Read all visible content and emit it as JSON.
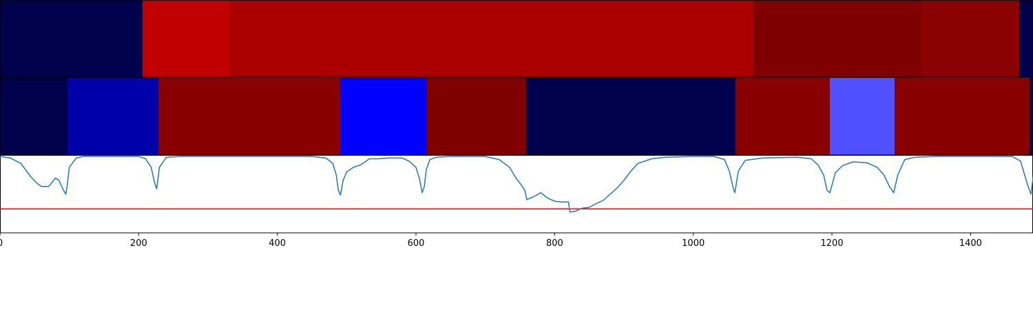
{
  "chart_data": [
    {
      "type": "heatmap",
      "segments": [
        {
          "start": 0,
          "end": 206,
          "color": "#00004c"
        },
        {
          "start": 206,
          "end": 332,
          "color": "#c00000"
        },
        {
          "start": 332,
          "end": 1087,
          "color": "#aa0000"
        },
        {
          "start": 1087,
          "end": 1329,
          "color": "#7f0000"
        },
        {
          "start": 1329,
          "end": 1470,
          "color": "#8b0000"
        },
        {
          "start": 1470,
          "end": 1500,
          "color": "#00004c"
        }
      ]
    },
    {
      "type": "heatmap",
      "segments": [
        {
          "start": 0,
          "end": 97,
          "color": "#00004c"
        },
        {
          "start": 97,
          "end": 228,
          "color": "#0000aa"
        },
        {
          "start": 228,
          "end": 491,
          "color": "#880000"
        },
        {
          "start": 491,
          "end": 615,
          "color": "#0000ff"
        },
        {
          "start": 615,
          "end": 759,
          "color": "#800000"
        },
        {
          "start": 759,
          "end": 1061,
          "color": "#00004c"
        },
        {
          "start": 1061,
          "end": 1197,
          "color": "#880000"
        },
        {
          "start": 1197,
          "end": 1290,
          "color": "#5050ff"
        },
        {
          "start": 1290,
          "end": 1485,
          "color": "#880000"
        },
        {
          "start": 1485,
          "end": 1500,
          "color": "#00004c"
        }
      ]
    },
    {
      "type": "line",
      "xlim": [
        0,
        1490
      ],
      "ylim": [
        0,
        1
      ],
      "xticks": [
        0,
        200,
        400,
        600,
        800,
        1000,
        1200,
        1400
      ],
      "line_color": "#1f77b4",
      "threshold": {
        "y": 0.31,
        "color": "#ff0000"
      },
      "series": [
        {
          "x": [
            0,
            15,
            30,
            45,
            55,
            60,
            70,
            80,
            85,
            90,
            95,
            97,
            100,
            110,
            120,
            140,
            180,
            200,
            210,
            218,
            223,
            226,
            230,
            240,
            260,
            300,
            400,
            450,
            470,
            480,
            485,
            488,
            491,
            495,
            500,
            510,
            520,
            533,
            545,
            560,
            580,
            590,
            600,
            605,
            609,
            612,
            615,
            620,
            630,
            650,
            680,
            700,
            720,
            735,
            745,
            752,
            757,
            760,
            770,
            780,
            790,
            800,
            810,
            820,
            822,
            830,
            840,
            850,
            860,
            870,
            880,
            890,
            900,
            910,
            920,
            940,
            960,
            1000,
            1030,
            1045,
            1052,
            1057,
            1060,
            1065,
            1075,
            1100,
            1150,
            1170,
            1180,
            1188,
            1193,
            1197,
            1205,
            1215,
            1230,
            1250,
            1265,
            1275,
            1283,
            1289,
            1295,
            1305,
            1320,
            1350,
            1400,
            1440,
            1460,
            1472,
            1478,
            1483,
            1487,
            1492,
            1500
          ],
          "y": [
            0.99,
            0.97,
            0.9,
            0.72,
            0.63,
            0.6,
            0.6,
            0.71,
            0.68,
            0.58,
            0.5,
            0.62,
            0.85,
            0.97,
            0.99,
            0.99,
            0.99,
            0.99,
            0.96,
            0.85,
            0.65,
            0.57,
            0.85,
            0.98,
            0.99,
            0.99,
            0.99,
            0.99,
            0.97,
            0.9,
            0.75,
            0.55,
            0.49,
            0.68,
            0.79,
            0.85,
            0.88,
            0.96,
            0.96,
            0.97,
            0.97,
            0.93,
            0.85,
            0.7,
            0.52,
            0.6,
            0.82,
            0.95,
            0.98,
            0.99,
            0.99,
            0.99,
            0.95,
            0.85,
            0.7,
            0.62,
            0.55,
            0.43,
            0.47,
            0.52,
            0.45,
            0.41,
            0.4,
            0.4,
            0.27,
            0.28,
            0.32,
            0.33,
            0.38,
            0.42,
            0.5,
            0.58,
            0.68,
            0.8,
            0.9,
            0.96,
            0.98,
            0.99,
            0.99,
            0.95,
            0.8,
            0.6,
            0.52,
            0.8,
            0.94,
            0.97,
            0.98,
            0.96,
            0.88,
            0.75,
            0.55,
            0.52,
            0.78,
            0.87,
            0.92,
            0.91,
            0.85,
            0.75,
            0.6,
            0.52,
            0.75,
            0.95,
            0.98,
            0.99,
            0.99,
            0.99,
            0.99,
            0.93,
            0.75,
            0.6,
            0.5,
            0.85,
            0.93
          ]
        }
      ]
    }
  ]
}
